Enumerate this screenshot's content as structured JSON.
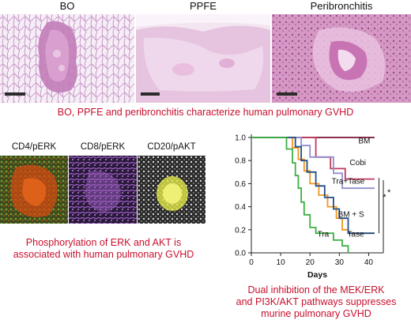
{
  "histology": {
    "labels": [
      "BO",
      "PPFE",
      "Peribronchitis"
    ],
    "caption": "BO, PPFE and peribronchitis characterize human pulmonary GVHD"
  },
  "immunofluorescence": {
    "labels": [
      "CD4/pERK",
      "CD8/pERK",
      "CD20/pAKT"
    ],
    "caption_line1": "Phosphorylation of ERK and AKT is",
    "caption_line2": "associated with human pulmonary GVHD"
  },
  "survival_caption": {
    "line1": "Dual inhibition of the MEK/ERK",
    "line2": "and PI3K/AKT pathways suppresses",
    "line3": "murine pulmonary GVHD"
  },
  "colors": {
    "caption_red": "#c8102e",
    "BM": "#7a1535",
    "Cobi": "#c0395c",
    "Tra+Tase": "#8f8fd0",
    "BM + S": "#f0961e",
    "Tase": "#1f4e8a",
    "Tra": "#3cb043"
  },
  "chart_data": {
    "type": "line",
    "xlabel": "Days",
    "ylabel": "",
    "xlim": [
      0,
      45
    ],
    "ylim": [
      0,
      1.0
    ],
    "x_ticks": [
      0,
      10,
      20,
      30,
      40
    ],
    "y_ticks": [
      0.0,
      0.2,
      0.4,
      0.6,
      0.8,
      1.0
    ],
    "x_tick_labels": [
      "0",
      "10",
      "20",
      "30",
      "40"
    ],
    "y_tick_labels": [
      "0.0",
      "0.2",
      "0.4",
      "0.6",
      "0.8",
      "1.0"
    ],
    "significance": [
      "*",
      "*"
    ],
    "series": [
      {
        "name": "BM",
        "steps": [
          [
            0,
            1.0
          ],
          [
            42,
            1.0
          ]
        ]
      },
      {
        "name": "Cobi",
        "steps": [
          [
            0,
            1.0
          ],
          [
            22,
            1.0
          ],
          [
            22,
            0.83
          ],
          [
            27,
            0.83
          ],
          [
            27,
            0.73
          ],
          [
            32,
            0.73
          ],
          [
            32,
            0.64
          ],
          [
            42,
            0.64
          ]
        ]
      },
      {
        "name": "Tra+Tase",
        "steps": [
          [
            0,
            1.0
          ],
          [
            17,
            1.0
          ],
          [
            17,
            0.93
          ],
          [
            20,
            0.93
          ],
          [
            20,
            0.83
          ],
          [
            28,
            0.83
          ],
          [
            28,
            0.69
          ],
          [
            31,
            0.69
          ],
          [
            31,
            0.56
          ],
          [
            42,
            0.56
          ]
        ]
      },
      {
        "name": "BM + S",
        "steps": [
          [
            0,
            1.0
          ],
          [
            14,
            1.0
          ],
          [
            14,
            0.91
          ],
          [
            16,
            0.91
          ],
          [
            16,
            0.81
          ],
          [
            18,
            0.81
          ],
          [
            18,
            0.71
          ],
          [
            20,
            0.71
          ],
          [
            20,
            0.6
          ],
          [
            23,
            0.6
          ],
          [
            23,
            0.5
          ],
          [
            26,
            0.5
          ],
          [
            26,
            0.4
          ],
          [
            29,
            0.4
          ],
          [
            29,
            0.3
          ],
          [
            31,
            0.3
          ],
          [
            31,
            0.2
          ],
          [
            33,
            0.2
          ],
          [
            33,
            0.17
          ],
          [
            42,
            0.17
          ]
        ]
      },
      {
        "name": "Tase",
        "steps": [
          [
            0,
            1.0
          ],
          [
            15,
            1.0
          ],
          [
            15,
            0.92
          ],
          [
            17,
            0.92
          ],
          [
            17,
            0.8
          ],
          [
            19,
            0.8
          ],
          [
            19,
            0.7
          ],
          [
            22,
            0.7
          ],
          [
            22,
            0.58
          ],
          [
            25,
            0.58
          ],
          [
            25,
            0.48
          ],
          [
            28,
            0.48
          ],
          [
            28,
            0.38
          ],
          [
            30,
            0.38
          ],
          [
            30,
            0.3
          ],
          [
            33,
            0.3
          ],
          [
            33,
            0.17
          ],
          [
            42,
            0.17
          ]
        ]
      },
      {
        "name": "Tra",
        "steps": [
          [
            0,
            1.0
          ],
          [
            12,
            1.0
          ],
          [
            12,
            0.9
          ],
          [
            14,
            0.9
          ],
          [
            14,
            0.78
          ],
          [
            15,
            0.78
          ],
          [
            15,
            0.67
          ],
          [
            16,
            0.67
          ],
          [
            16,
            0.56
          ],
          [
            17,
            0.56
          ],
          [
            17,
            0.44
          ],
          [
            18,
            0.44
          ],
          [
            18,
            0.33
          ],
          [
            20,
            0.33
          ],
          [
            20,
            0.22
          ],
          [
            22,
            0.22
          ],
          [
            22,
            0.17
          ],
          [
            28,
            0.17
          ],
          [
            28,
            0.11
          ],
          [
            31,
            0.11
          ],
          [
            31,
            0.06
          ],
          [
            33,
            0.06
          ],
          [
            33,
            0.0
          ]
        ]
      }
    ],
    "labels": [
      {
        "text": "BM",
        "x": 38.5,
        "y": 0.95
      },
      {
        "text": "Cobi",
        "x": 36.3,
        "y": 0.76
      },
      {
        "text": "Tra+Tase",
        "x": 33.0,
        "y": 0.6
      },
      {
        "text": "BM + S",
        "x": 34.0,
        "y": 0.31
      },
      {
        "text": "Tra",
        "x": 24.5,
        "y": 0.14
      },
      {
        "text": "Tase",
        "x": 35.6,
        "y": 0.14
      }
    ]
  }
}
